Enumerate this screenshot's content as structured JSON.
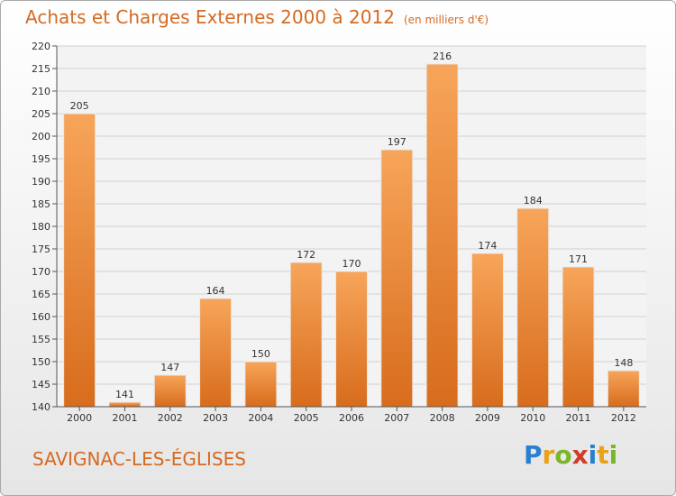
{
  "chart_data": {
    "type": "bar",
    "title": "Achats et Charges Externes 2000 à 2012",
    "subtitle": "(en milliers d'€)",
    "categories": [
      "2000",
      "2001",
      "2002",
      "2003",
      "2004",
      "2005",
      "2006",
      "2007",
      "2008",
      "2009",
      "2010",
      "2011",
      "2012"
    ],
    "values": [
      205,
      141,
      147,
      164,
      150,
      172,
      170,
      197,
      216,
      174,
      184,
      171,
      148
    ],
    "yticks": [
      140,
      145,
      150,
      155,
      160,
      165,
      170,
      175,
      180,
      185,
      190,
      195,
      200,
      205,
      210,
      215,
      220
    ],
    "ylim": [
      140,
      220
    ],
    "grid": true,
    "bar_color": "#f39a45"
  },
  "location": "SAVIGNAC-LES-ÉGLISES",
  "logo": {
    "text": "Proxiti",
    "letters": [
      {
        "ch": "P",
        "color": "#2b7fd0"
      },
      {
        "ch": "r",
        "color": "#e8a21a"
      },
      {
        "ch": "o",
        "color": "#7ab52a"
      },
      {
        "ch": "x",
        "color": "#d23a2a"
      },
      {
        "ch": "i",
        "color": "#2b7fd0"
      },
      {
        "ch": "t",
        "color": "#e8a21a"
      },
      {
        "ch": "i",
        "color": "#7ab52a"
      }
    ]
  }
}
